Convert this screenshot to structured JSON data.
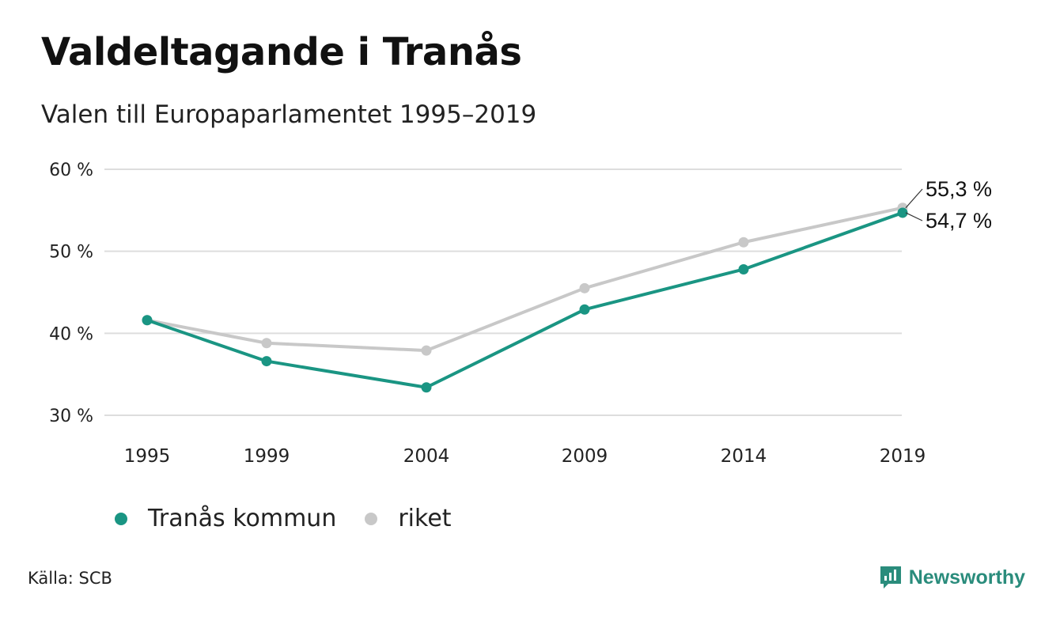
{
  "title": "Valdeltagande i Tranås",
  "subtitle": "Valen till Europaparlamentet 1995–2019",
  "source": "Källa: SCB",
  "brand": {
    "name": "Newsworthy",
    "icon": "newsworthy-logo-icon",
    "color": "#2a8c7c"
  },
  "chart_data": {
    "type": "line",
    "x": [
      "1995",
      "1999",
      "2004",
      "2009",
      "2014",
      "2019"
    ],
    "ylim": [
      30,
      60
    ],
    "yticks": [
      30,
      40,
      50,
      60
    ],
    "ytick_labels": [
      "30 %",
      "40 %",
      "50 %",
      "60 %"
    ],
    "grid": true,
    "legend_position": "bottom-left",
    "series": [
      {
        "name": "riket",
        "color": "#c8c8c8",
        "values": [
          41.6,
          38.8,
          37.9,
          45.5,
          51.1,
          55.3
        ],
        "end_label": "55,3 %"
      },
      {
        "name": "Tranås kommun",
        "color": "#1a9583",
        "values": [
          41.6,
          36.6,
          33.4,
          42.9,
          47.8,
          54.7
        ],
        "end_label": "54,7 %"
      }
    ]
  }
}
